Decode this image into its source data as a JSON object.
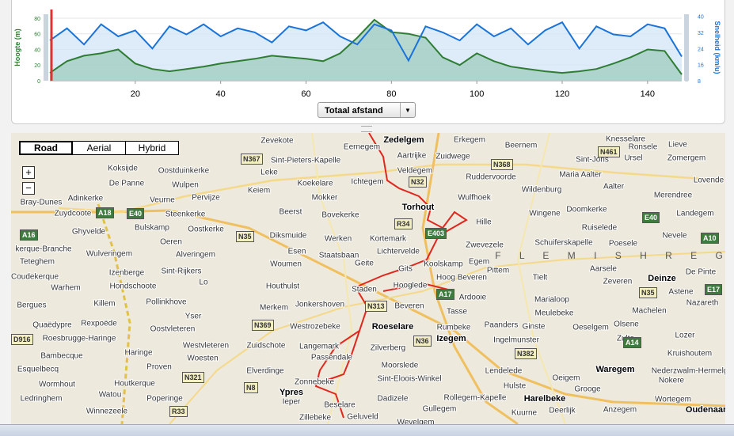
{
  "chart_data": {
    "type": "line",
    "x_selector": "Totaal afstand",
    "x": [
      0,
      4,
      8,
      12,
      16,
      20,
      24,
      28,
      32,
      36,
      40,
      44,
      48,
      52,
      56,
      60,
      64,
      68,
      72,
      76,
      80,
      84,
      88,
      92,
      96,
      100,
      104,
      108,
      112,
      116,
      120,
      124,
      128,
      132,
      136,
      140,
      144,
      148
    ],
    "xlim": [
      0,
      148
    ],
    "xticks": [
      20,
      40,
      60,
      80,
      100,
      120,
      140
    ],
    "ylabel": "Hoogte (m)",
    "ylim": [
      0,
      85
    ],
    "yticks": [
      0,
      20,
      40,
      60,
      80
    ],
    "y2label": "Snelheid (km/u)",
    "y2lim": [
      8,
      41
    ],
    "y2ticks": [
      8,
      16,
      24,
      32,
      40
    ],
    "grid": true,
    "series": [
      {
        "name": "Hoogte",
        "color": "#2e7d32",
        "fill": "#9fcbbe",
        "values": [
          10,
          25,
          32,
          35,
          40,
          22,
          15,
          12,
          15,
          18,
          22,
          25,
          28,
          32,
          30,
          28,
          25,
          35,
          55,
          78,
          62,
          60,
          55,
          30,
          20,
          35,
          25,
          18,
          15,
          12,
          10,
          12,
          15,
          22,
          30,
          40,
          38,
          8
        ]
      },
      {
        "name": "Snelheid",
        "axis": "y2",
        "color": "#1a73d9",
        "fill": "#d3e6f8",
        "values": [
          28,
          34,
          26,
          36,
          30,
          33,
          24,
          35,
          31,
          36,
          30,
          34,
          32,
          27,
          35,
          33,
          37,
          30,
          26,
          36,
          33,
          18,
          35,
          32,
          28,
          36,
          30,
          34,
          26,
          33,
          37,
          24,
          35,
          31,
          30,
          36,
          34,
          20
        ]
      }
    ]
  },
  "map": {
    "map_types": [
      "Road",
      "Aerial",
      "Hybrid"
    ],
    "region": "F L E M I S H R E G",
    "labels": [
      "Zedelgem",
      "Zevekote",
      "Eernegem",
      "Erkegem",
      "Beernem",
      "Knesselare",
      "Aartrijke",
      "Zuidwege",
      "Ronsele",
      "Sint-Joris",
      "Ursel",
      "Zomergem",
      "Sint-Pieters-Kapelle",
      "Veldegem",
      "Ruddervoorde",
      "Maria Aalter",
      "Koksijde",
      "Oostduinkerke",
      "Leke",
      "Koekelare",
      "Ichtegem",
      "Wildenburg",
      "Aalter",
      "Lovende",
      "De Panne",
      "Wulpen",
      "Keiem",
      "Mokker",
      "Wulfhoek",
      "Merendree",
      "Adinkerke",
      "Veurne",
      "Pervijze",
      "Torhout",
      "Bray-Dunes",
      "Zuydcoote",
      "Steenkerke",
      "Beerst",
      "Bovekerke",
      "Hille",
      "Wingene",
      "Doomkerke",
      "Landegem",
      "Ghyvelde",
      "Bulskamp",
      "Oostkerke",
      "Diksmuide",
      "Werken",
      "Kortemark",
      "Ruiselede",
      "Zwevezele",
      "Schuiferskapelle",
      "Poesele",
      "Nevele",
      "Oeren",
      "Esen",
      "Lichtervelde",
      "Koolskamp",
      "Wulveringem",
      "Alveringem",
      "Staatsbaan",
      "Egem",
      "Teteghem",
      "Woumen",
      "Geite",
      "Gits",
      "Pittem",
      "Aarsele",
      "Sint-Rijkers",
      "Izenberge",
      "Tielt",
      "Deinze",
      "Coudekerque",
      "Hondschoote",
      "Lo",
      "Houthulst",
      "Staden",
      "Hooglede",
      "Hoog Beveren",
      "Zeveren",
      "De Pinte",
      "Warhem",
      "Killem",
      "Pollinkhove",
      "Merkem",
      "Jonkershoven",
      "Beveren",
      "Ardooie",
      "Marialoop",
      "Astene",
      "Bergues",
      "Tasse",
      "Meulebeke",
      "Machelen",
      "Nazareth",
      "Rexpoëde",
      "Oostvleteren",
      "Westrozebeke",
      "Roeselare",
      "Rumbeke",
      "Paanders",
      "Ginste",
      "Oeselgem",
      "Olsene",
      "Quaëdypre",
      "Ingelmunster",
      "Zulte",
      "Lozer",
      "Roesbrugge-Haringe",
      "Westvleteren",
      "Zuidschote",
      "Langemark",
      "Zilverberg",
      "Izegem",
      "Kruishoutem",
      "Haringe",
      "Woesten",
      "Passendale",
      "Bambecque",
      "Proven",
      "Elverdinge",
      "Moorslede",
      "Sint-Eloois-Winkel",
      "Lendelede",
      "Waregem",
      "Nederzwalm-Hermelgem",
      "Esquelbecq",
      "Oeigem",
      "Wormhout",
      "Houtkerque",
      "Zonnebeke",
      "Hulste",
      "Nokere",
      "Watou",
      "Poperinge",
      "Ypres",
      "Ieper",
      "Dadizele",
      "Rollegem-Kapelle",
      "Harelbeke",
      "Grooge",
      "Wortegem",
      "Winnezeele",
      "Ledringhem",
      "Beselare",
      "Gullegem",
      "Kuurne",
      "Deerlijk",
      "Anzegem",
      "Oudenaarde",
      "Zillebeke",
      "Geluveld",
      "Wevelgem",
      "kerque-Branche",
      "Yser",
      "Lieve"
    ],
    "road_signs": [
      "N367",
      "N32",
      "N368",
      "N461",
      "A18",
      "E40",
      "A16",
      "R34",
      "E403",
      "E40",
      "A10",
      "N35",
      "A17",
      "N313",
      "N369",
      "N36",
      "N382",
      "A14",
      "N35",
      "E17",
      "D916",
      "N321",
      "N8",
      "R33"
    ]
  }
}
